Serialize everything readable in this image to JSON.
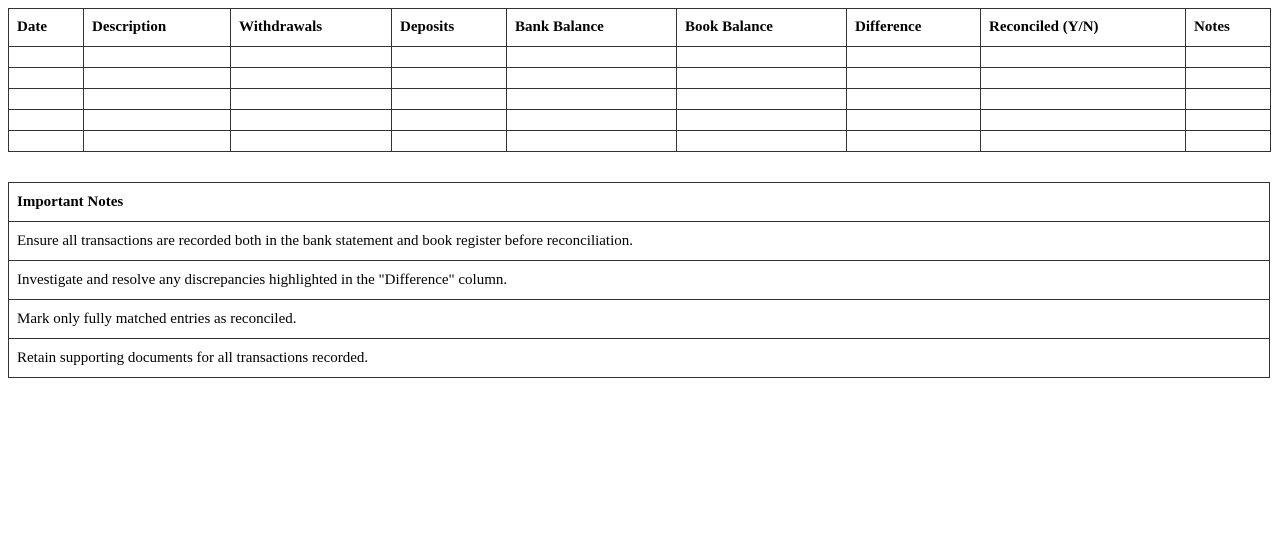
{
  "reconciliation_table": {
    "columns": [
      "Date",
      "Description",
      "Withdrawals",
      "Deposits",
      "Bank Balance",
      "Book Balance",
      "Difference",
      "Reconciled (Y/N)",
      "Notes"
    ],
    "rows": [
      [
        "",
        "",
        "",
        "",
        "",
        "",
        "",
        "",
        ""
      ],
      [
        "",
        "",
        "",
        "",
        "",
        "",
        "",
        "",
        ""
      ],
      [
        "",
        "",
        "",
        "",
        "",
        "",
        "",
        "",
        ""
      ],
      [
        "",
        "",
        "",
        "",
        "",
        "",
        "",
        "",
        ""
      ],
      [
        "",
        "",
        "",
        "",
        "",
        "",
        "",
        "",
        ""
      ]
    ]
  },
  "notes_table": {
    "heading": "Important Notes",
    "items": [
      "Ensure all transactions are recorded both in the bank statement and book register before reconciliation.",
      "Investigate and resolve any discrepancies highlighted in the \"Difference\" column.",
      "Mark only fully matched entries as reconciled.",
      "Retain supporting documents for all transactions recorded."
    ]
  }
}
